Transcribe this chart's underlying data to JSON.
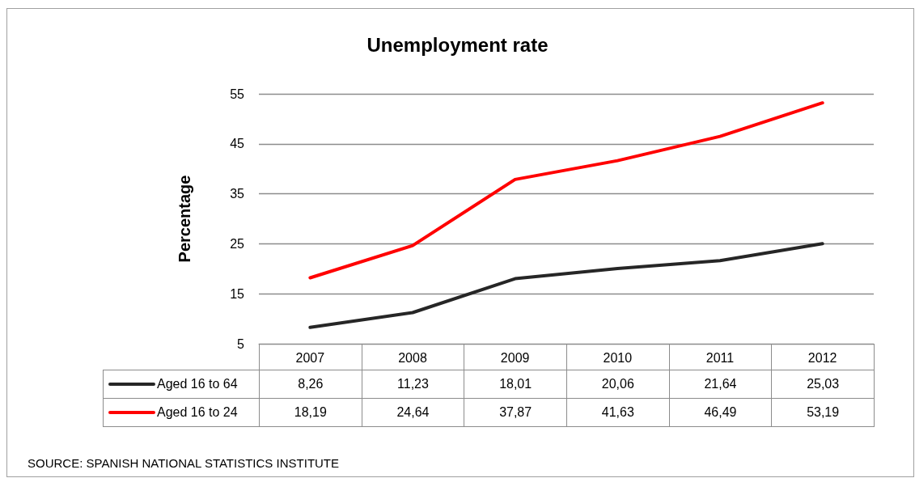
{
  "chart_data": {
    "type": "line",
    "title": "Unemployment rate",
    "ylabel": "Percentage",
    "categories": [
      "2007",
      "2008",
      "2009",
      "2010",
      "2011",
      "2012"
    ],
    "series": [
      {
        "name": "Aged 16 to 64",
        "color": "#262626",
        "values": [
          8.26,
          11.23,
          18.01,
          20.06,
          21.64,
          25.03
        ],
        "value_labels": [
          "8,26",
          "11,23",
          "18,01",
          "20,06",
          "21,64",
          "25,03"
        ]
      },
      {
        "name": "Aged 16 to 24",
        "color": "#ff0000",
        "values": [
          18.19,
          24.64,
          37.87,
          41.63,
          46.49,
          53.19
        ],
        "value_labels": [
          "18,19",
          "24,64",
          "37,87",
          "41,63",
          "46,49",
          "53,19"
        ]
      }
    ],
    "ylim": [
      5,
      55
    ],
    "yticks": [
      5,
      15,
      25,
      35,
      45,
      55
    ],
    "grid": "y",
    "legend": "bottom left",
    "marker": "none",
    "line_style": "solid",
    "annotations": [
      "SOURCE: SPANISH NATIONAL STATISTICS INSTITUTE"
    ]
  }
}
